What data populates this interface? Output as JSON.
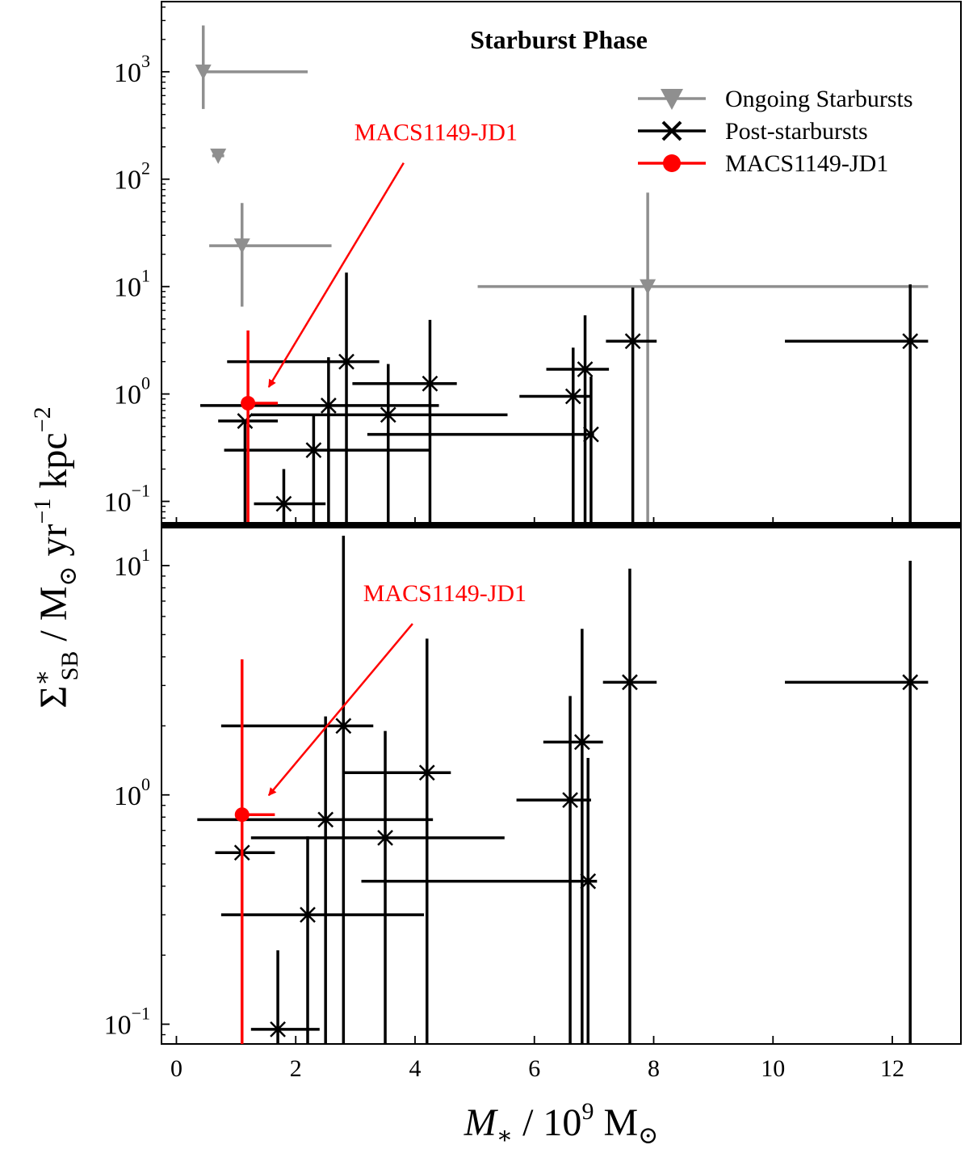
{
  "chart_data": [
    {
      "type": "scatter",
      "panel": "top",
      "title": "Starburst Phase",
      "yscale": "log",
      "ylim": [
        0.06,
        4500
      ],
      "xlim": [
        -0.25,
        13.15
      ],
      "yticks": [
        {
          "value": 1000,
          "base": "10",
          "exp": "3"
        },
        {
          "value": 100,
          "base": "10",
          "exp": "2"
        },
        {
          "value": 10,
          "base": "10",
          "exp": "1"
        },
        {
          "value": 1,
          "base": "10",
          "exp": "0"
        },
        {
          "value": 0.1,
          "base": "10",
          "exp": "−1"
        }
      ],
      "legend": {
        "position": "top-right",
        "entries": [
          "Ongoing Starbursts",
          "Post-starbursts",
          "MACS1149-JD1"
        ]
      },
      "series": [
        {
          "name": "Ongoing Starbursts",
          "marker": "triangle-down",
          "color": "#8f8f8f",
          "points": [
            {
              "x": 0.45,
              "y": 1000,
              "xlo": 0.45,
              "xhi": 2.2,
              "ylo": 450,
              "yhi": 2700
            },
            {
              "x": 0.7,
              "y": 165,
              "xlo": 0.6,
              "xhi": 0.8,
              "ylo": 150,
              "yhi": 185
            },
            {
              "x": 1.1,
              "y": 24,
              "xlo": 0.55,
              "xhi": 2.6,
              "ylo": 6.5,
              "yhi": 60
            },
            {
              "x": 7.9,
              "y": 10,
              "xlo": 5.05,
              "xhi": 12.6,
              "ylo": 0.06,
              "yhi": 75
            }
          ]
        },
        {
          "name": "Post-starbursts",
          "marker": "x",
          "color": "#000000",
          "points": [
            {
              "x": 1.15,
              "y": 0.56,
              "xlo": 0.7,
              "xhi": 1.7,
              "ylo": 0.06,
              "yhi": 0.56
            },
            {
              "x": 1.8,
              "y": 0.095,
              "xlo": 1.3,
              "xhi": 2.5,
              "ylo": 0.06,
              "yhi": 0.2
            },
            {
              "x": 2.3,
              "y": 0.3,
              "xlo": 0.8,
              "xhi": 4.25,
              "ylo": 0.06,
              "yhi": 0.64
            },
            {
              "x": 2.55,
              "y": 0.78,
              "xlo": 0.4,
              "xhi": 4.4,
              "ylo": 0.06,
              "yhi": 2.2
            },
            {
              "x": 2.85,
              "y": 2.0,
              "xlo": 0.85,
              "xhi": 3.4,
              "ylo": 0.06,
              "yhi": 13.5
            },
            {
              "x": 3.55,
              "y": 0.64,
              "xlo": 1.25,
              "xhi": 5.55,
              "ylo": 0.06,
              "yhi": 1.9
            },
            {
              "x": 4.25,
              "y": 1.25,
              "xlo": 2.95,
              "xhi": 4.7,
              "ylo": 0.06,
              "yhi": 4.9
            },
            {
              "x": 6.65,
              "y": 0.95,
              "xlo": 5.75,
              "xhi": 6.95,
              "ylo": 0.06,
              "yhi": 2.7
            },
            {
              "x": 6.85,
              "y": 1.7,
              "xlo": 6.2,
              "xhi": 7.25,
              "ylo": 0.06,
              "yhi": 5.4
            },
            {
              "x": 6.95,
              "y": 0.42,
              "xlo": 3.2,
              "xhi": 7.0,
              "ylo": 0.06,
              "yhi": 1.45
            },
            {
              "x": 7.65,
              "y": 3.1,
              "xlo": 7.2,
              "xhi": 8.05,
              "ylo": 0.06,
              "yhi": 9.8
            },
            {
              "x": 12.3,
              "y": 3.1,
              "xlo": 10.2,
              "xhi": 12.6,
              "ylo": 0.06,
              "yhi": 10.5
            }
          ]
        },
        {
          "name": "MACS1149-JD1",
          "marker": "circle",
          "color": "#ff0000",
          "points": [
            {
              "x": 1.2,
              "y": 0.82,
              "xlo": 1.2,
              "xhi": 1.7,
              "ylo": 0.06,
              "yhi": 3.9
            }
          ]
        }
      ],
      "annotation": {
        "text": "MACS1149-JD1",
        "x": 1.25,
        "y": 0.85,
        "text_x": 4.35,
        "text_y": 230,
        "color": "#ff0000"
      }
    },
    {
      "type": "scatter",
      "panel": "bottom",
      "yscale": "log",
      "ylim": [
        0.082,
        15
      ],
      "xlim": [
        -0.25,
        13.15
      ],
      "xlabel_main": "M",
      "xlabel_sub": "∗",
      "xlabel_rest": " / 10",
      "xlabel_exp": "9",
      "xlabel_unit": " M",
      "xlabel_unit_sub": "⊙",
      "xticks": [
        0,
        2,
        4,
        6,
        8,
        10,
        12
      ],
      "yticks": [
        {
          "value": 10,
          "base": "10",
          "exp": "1"
        },
        {
          "value": 1,
          "base": "10",
          "exp": "0"
        },
        {
          "value": 0.1,
          "base": "10",
          "exp": "−1"
        }
      ],
      "series": [
        {
          "name": "Post-starbursts",
          "marker": "x",
          "color": "#000000",
          "points": [
            {
              "x": 1.1,
              "y": 0.56,
              "xlo": 0.65,
              "xhi": 1.65,
              "ylo": 0.082,
              "yhi": 0.56
            },
            {
              "x": 1.7,
              "y": 0.095,
              "xlo": 1.25,
              "xhi": 2.4,
              "ylo": 0.082,
              "yhi": 0.21
            },
            {
              "x": 2.2,
              "y": 0.3,
              "xlo": 0.75,
              "xhi": 4.15,
              "ylo": 0.082,
              "yhi": 0.66
            },
            {
              "x": 2.5,
              "y": 0.78,
              "xlo": 0.35,
              "xhi": 4.3,
              "ylo": 0.082,
              "yhi": 2.2
            },
            {
              "x": 2.8,
              "y": 2.0,
              "xlo": 0.75,
              "xhi": 3.3,
              "ylo": 0.082,
              "yhi": 13.5
            },
            {
              "x": 3.5,
              "y": 0.65,
              "xlo": 1.25,
              "xhi": 5.5,
              "ylo": 0.082,
              "yhi": 1.9
            },
            {
              "x": 4.2,
              "y": 1.25,
              "xlo": 2.8,
              "xhi": 4.6,
              "ylo": 0.082,
              "yhi": 4.8
            },
            {
              "x": 6.6,
              "y": 0.95,
              "xlo": 5.7,
              "xhi": 6.95,
              "ylo": 0.082,
              "yhi": 2.7
            },
            {
              "x": 6.8,
              "y": 1.7,
              "xlo": 6.15,
              "xhi": 7.15,
              "ylo": 0.082,
              "yhi": 5.3
            },
            {
              "x": 6.9,
              "y": 0.42,
              "xlo": 3.1,
              "xhi": 7.05,
              "ylo": 0.082,
              "yhi": 1.45
            },
            {
              "x": 7.6,
              "y": 3.1,
              "xlo": 7.15,
              "xhi": 8.05,
              "ylo": 0.082,
              "yhi": 9.7
            },
            {
              "x": 12.3,
              "y": 3.1,
              "xlo": 10.2,
              "xhi": 12.6,
              "ylo": 0.082,
              "yhi": 10.5
            }
          ]
        },
        {
          "name": "MACS1149-JD1",
          "marker": "circle",
          "color": "#ff0000",
          "points": [
            {
              "x": 1.1,
              "y": 0.82,
              "xlo": 1.1,
              "xhi": 1.65,
              "ylo": 0.082,
              "yhi": 3.9
            }
          ]
        }
      ],
      "annotation": {
        "text": "MACS1149-JD1",
        "x": 1.25,
        "y": 0.86,
        "text_x": 4.5,
        "text_y": 7.0,
        "color": "#ff0000"
      }
    }
  ],
  "ylabel": {
    "symbol": "Σ",
    "sup": "∗",
    "sub": "SB",
    "rest1": " / M",
    "sun": "⊙",
    "rest2": " yr",
    "exp1": "−1",
    "rest3": " kpc",
    "exp2": "−2"
  }
}
